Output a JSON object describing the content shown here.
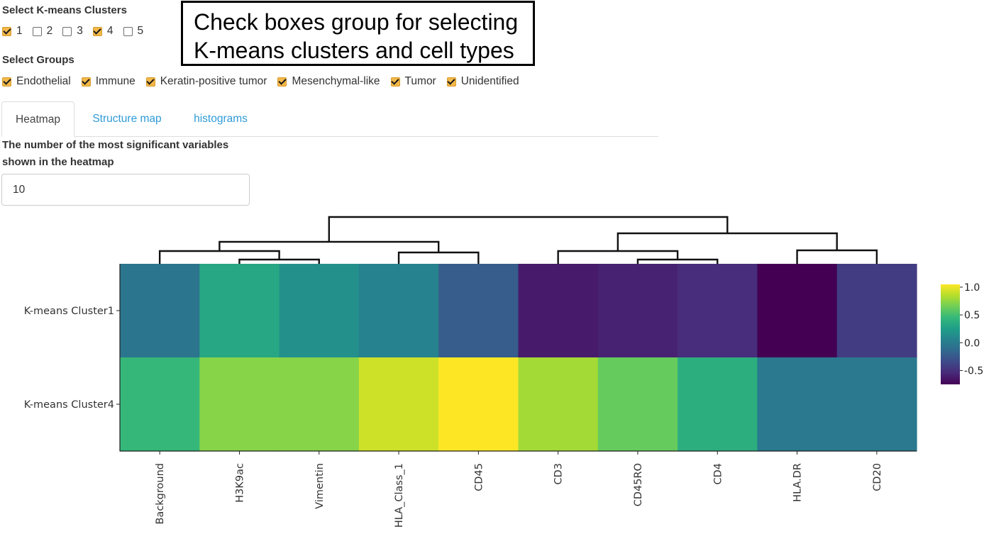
{
  "kmeans": {
    "title": "Select K-means Clusters",
    "options": [
      {
        "label": "1",
        "checked": true
      },
      {
        "label": "2",
        "checked": false
      },
      {
        "label": "3",
        "checked": false
      },
      {
        "label": "4",
        "checked": true
      },
      {
        "label": "5",
        "checked": false
      }
    ]
  },
  "groups": {
    "title": "Select Groups",
    "options": [
      {
        "label": "Endothelial",
        "checked": true
      },
      {
        "label": "Immune",
        "checked": true
      },
      {
        "label": "Keratin-positive tumor",
        "checked": true
      },
      {
        "label": "Mesenchymal-like",
        "checked": true
      },
      {
        "label": "Tumor",
        "checked": true
      },
      {
        "label": "Unidentified",
        "checked": true
      }
    ]
  },
  "callout": {
    "text": "Check boxes group for selecting\nK-means clusters and cell types"
  },
  "tabs": [
    {
      "label": "Heatmap",
      "active": true
    },
    {
      "label": "Structure map",
      "active": false
    },
    {
      "label": "histograms",
      "active": false
    }
  ],
  "variables": {
    "label": "The number of the most significant variables\nshown in the heatmap",
    "value": "10"
  },
  "colors": {
    "accent_checkbox": "#f2b84a",
    "tab_link": "#2f9bd9",
    "colorscale": [
      "#440154",
      "#482878",
      "#3e4989",
      "#31688e",
      "#26828e",
      "#1f9e89",
      "#35b779",
      "#6ece58",
      "#b5de2b",
      "#fde725"
    ]
  },
  "chart_data": {
    "type": "heatmap",
    "rows": [
      "K-means Cluster1",
      "K-means Cluster4"
    ],
    "columns": [
      "Background",
      "H3K9ac",
      "Vimentin",
      "HLA_Class_1",
      "CD45",
      "CD3",
      "CD45RO",
      "CD4",
      "HLA.DR",
      "CD20"
    ],
    "values": [
      [
        -0.05,
        0.32,
        0.15,
        0.05,
        -0.22,
        -0.62,
        -0.58,
        -0.52,
        -0.78,
        -0.42
      ],
      [
        0.45,
        0.72,
        0.72,
        0.92,
        1.05,
        0.8,
        0.62,
        0.38,
        -0.02,
        -0.02
      ]
    ],
    "colorbar": {
      "min": -0.75,
      "max": 1.05,
      "ticks": [
        "1.0",
        "0.5",
        "0.0",
        "-0.5"
      ],
      "tick_values": [
        1.0,
        0.5,
        0.0,
        -0.5
      ]
    },
    "dendrogram": {
      "order": [
        "Background",
        "H3K9ac",
        "Vimentin",
        "HLA_Class_1",
        "CD45",
        "CD3",
        "CD45RO",
        "CD4",
        "HLA.DR",
        "CD20"
      ],
      "merges": [
        [
          "H3K9ac",
          "Vimentin"
        ],
        [
          "Background",
          "H3K9ac+Vimentin"
        ],
        [
          "HLA_Class_1",
          "CD45"
        ],
        [
          "Background+H3K9ac+Vimentin",
          "HLA_Class_1+CD45"
        ],
        [
          "CD45RO",
          "CD4"
        ],
        [
          "CD3",
          "CD45RO+CD4"
        ],
        [
          "HLA.DR",
          "CD20"
        ],
        [
          "CD3+CD45RO+CD4",
          "HLA.DR+CD20"
        ],
        [
          "left",
          "right"
        ]
      ]
    }
  }
}
